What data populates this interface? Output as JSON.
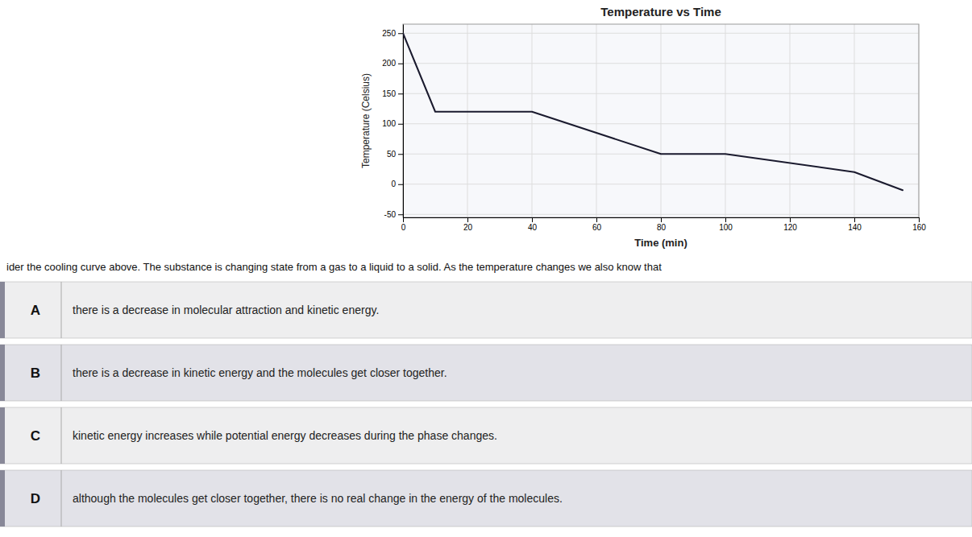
{
  "chart_data": {
    "type": "line",
    "title": "Temperature vs Time",
    "xlabel": "Time (min)",
    "ylabel": "Temperature (Celsius)",
    "x": [
      0,
      10,
      30,
      40,
      80,
      100,
      140,
      155
    ],
    "values": [
      250,
      120,
      120,
      120,
      50,
      50,
      20,
      -10
    ],
    "color": "#1a1a2e",
    "xlim": [
      0,
      160
    ],
    "ylim": [
      -55,
      265
    ],
    "xticks": [
      0,
      20,
      40,
      60,
      80,
      100,
      120,
      140,
      160
    ],
    "yticks": [
      -50,
      0,
      50,
      100,
      150,
      200,
      250
    ],
    "grid": true
  },
  "question_text": "ider the cooling curve above. The substance is changing state from a gas to a liquid to a solid. As the temperature changes we also know that",
  "options": [
    {
      "label": "A",
      "text": "there is a decrease in molecular attraction and kinetic energy."
    },
    {
      "label": "B",
      "text": "there is a decrease in kinetic energy and the molecules get closer together."
    },
    {
      "label": "C",
      "text": "kinetic energy increases while potential energy decreases during the phase changes."
    },
    {
      "label": "D",
      "text": "although the molecules get closer together, there is no real change in the energy of the molecules."
    }
  ]
}
